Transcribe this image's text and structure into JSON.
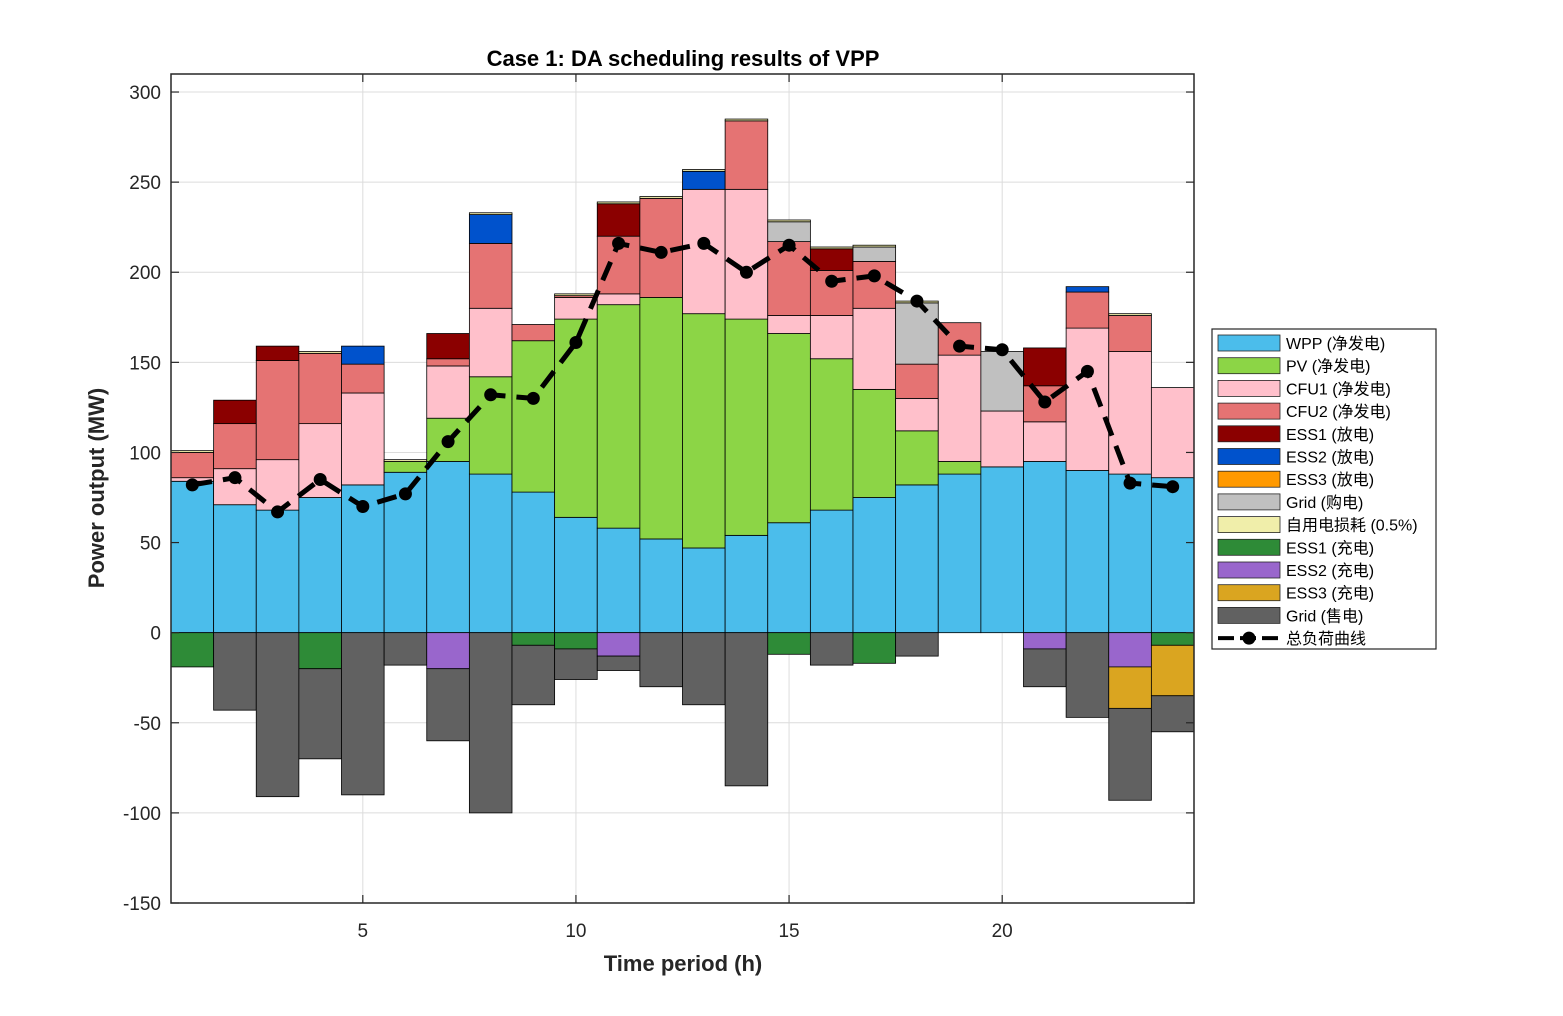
{
  "chart_data": {
    "type": "bar",
    "subtype": "stacked",
    "title": "Case 1: DA scheduling results of VPP",
    "xlabel": "Time period (h)",
    "ylabel": "Power output (MW)",
    "xlim": [
      0.5,
      24.5
    ],
    "ylim": [
      -150,
      310
    ],
    "xticks": [
      5,
      10,
      15,
      20
    ],
    "yticks": [
      -150,
      -100,
      -50,
      0,
      50,
      100,
      150,
      200,
      250,
      300
    ],
    "grid": true,
    "legend_position": "right",
    "categories": [
      1,
      2,
      3,
      4,
      5,
      6,
      7,
      8,
      9,
      10,
      11,
      12,
      13,
      14,
      15,
      16,
      17,
      18,
      19,
      20,
      21,
      22,
      23,
      24
    ],
    "positive_series": [
      {
        "name": "WPP (净发电)",
        "color": "#4BBDEB",
        "values": [
          84,
          71,
          68,
          75,
          82,
          89,
          95,
          88,
          78,
          64,
          58,
          52,
          47,
          54,
          61,
          68,
          75,
          82,
          88,
          92,
          95,
          90,
          88,
          86
        ]
      },
      {
        "name": "PV (净发电)",
        "color": "#8CD546",
        "values": [
          0,
          0,
          0,
          0,
          0,
          6,
          24,
          54,
          84,
          110,
          124,
          134,
          130,
          120,
          105,
          84,
          60,
          30,
          7,
          0,
          0,
          0,
          0,
          0
        ]
      },
      {
        "name": "CFU1 (净发电)",
        "color": "#FFC0CB",
        "values": [
          2,
          20,
          28,
          41,
          51,
          0,
          29,
          38,
          0,
          12,
          6,
          0,
          69,
          72,
          10,
          24,
          45,
          18,
          59,
          31,
          22,
          79,
          68,
          50
        ]
      },
      {
        "name": "CFU2 (净发电)",
        "color": "#E57373",
        "values": [
          14,
          25,
          55,
          39,
          16,
          0,
          4,
          36,
          9,
          1,
          32,
          55,
          0,
          38,
          41,
          25,
          26,
          19,
          18,
          0,
          20,
          20,
          20,
          0
        ]
      },
      {
        "name": "ESS1 (放电)",
        "color": "#8B0000",
        "values": [
          0,
          13,
          8,
          0,
          0,
          0,
          14,
          0,
          0,
          0,
          18,
          0,
          0,
          0,
          0,
          12,
          0,
          0,
          0,
          0,
          21,
          0,
          0,
          0
        ]
      },
      {
        "name": "ESS2 (放电)",
        "color": "#0052CC",
        "values": [
          0,
          0,
          0,
          0,
          10,
          0,
          0,
          16,
          0,
          0,
          0,
          0,
          10,
          0,
          0,
          0,
          0,
          0,
          0,
          0,
          0,
          3,
          0,
          0
        ]
      },
      {
        "name": "ESS3 (放电)",
        "color": "#FF9900",
        "values": [
          0,
          0,
          0,
          0,
          0,
          0,
          0,
          0,
          0,
          0,
          0,
          0,
          0,
          0,
          0,
          0,
          0,
          0,
          0,
          0,
          0,
          0,
          0,
          0
        ]
      },
      {
        "name": "Grid (购电)",
        "color": "#C0C0C0",
        "values": [
          0,
          0,
          0,
          0,
          0,
          0,
          0,
          0,
          0,
          0,
          0,
          0,
          0,
          0,
          11,
          0,
          8,
          34,
          0,
          33,
          0,
          0,
          0,
          0
        ]
      },
      {
        "name": "自用电损耗 (0.5%)",
        "color": "#F0EEAA",
        "values": [
          1,
          0,
          0,
          1,
          0,
          1,
          0,
          1,
          0,
          1,
          1,
          1,
          1,
          1,
          1,
          1,
          1,
          1,
          0,
          0,
          0,
          0,
          1,
          0
        ]
      }
    ],
    "negative_series": [
      {
        "name": "ESS1 (充电)",
        "color": "#2E8B37",
        "values": [
          -19,
          0,
          0,
          -20,
          0,
          0,
          0,
          0,
          -7,
          -9,
          0,
          0,
          0,
          0,
          -12,
          0,
          -17,
          0,
          0,
          0,
          0,
          0,
          0,
          -7
        ]
      },
      {
        "name": "ESS2 (充电)",
        "color": "#9966CC",
        "values": [
          0,
          0,
          0,
          0,
          0,
          0,
          -20,
          0,
          0,
          0,
          -13,
          0,
          0,
          0,
          0,
          0,
          0,
          0,
          0,
          0,
          -9,
          0,
          -19,
          0
        ]
      },
      {
        "name": "ESS3 (充电)",
        "color": "#DAA520",
        "values": [
          0,
          0,
          0,
          0,
          0,
          0,
          0,
          0,
          0,
          0,
          0,
          0,
          0,
          0,
          0,
          0,
          0,
          0,
          0,
          0,
          0,
          0,
          -23,
          -28
        ]
      },
      {
        "name": "Grid (售电)",
        "color": "#616161",
        "values": [
          0,
          -43,
          -91,
          -50,
          -90,
          -18,
          -40,
          -100,
          -33,
          -17,
          -8,
          -30,
          -40,
          -85,
          0,
          -18,
          0,
          -13,
          0,
          0,
          -21,
          -47,
          -51,
          -20
        ]
      }
    ],
    "load_curve": {
      "name": "总负荷曲线",
      "color": "#000000",
      "values": [
        82,
        86,
        67,
        85,
        70,
        77,
        106,
        132,
        130,
        161,
        216,
        211,
        216,
        200,
        215,
        195,
        198,
        184,
        159,
        157,
        128,
        145,
        83,
        81
      ]
    }
  }
}
